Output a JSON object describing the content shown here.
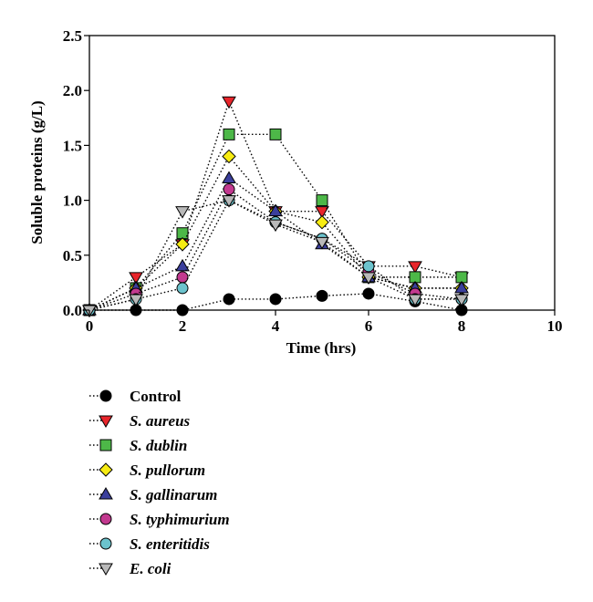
{
  "chart_data": {
    "type": "line",
    "title": "",
    "xlabel": "Time (hrs)",
    "ylabel": "Soluble proteins (g/L)",
    "xlim": [
      0,
      10
    ],
    "ylim": [
      0,
      2.5
    ],
    "xticks": [
      "0",
      "2",
      "4",
      "6",
      "8",
      "10"
    ],
    "yticks": [
      "0.0",
      "0.5",
      "1.0",
      "1.5",
      "2.0",
      "2.5"
    ],
    "grid": false,
    "legend_position": "below",
    "line_style": "dotted",
    "x": [
      0,
      1,
      2,
      3,
      4,
      5,
      6,
      7,
      8
    ],
    "series": [
      {
        "name": "Control",
        "italic": false,
        "marker": "circle",
        "color": "#000000",
        "values": [
          0,
          0,
          0,
          0.1,
          0.1,
          0.13,
          0.15,
          0.08,
          0
        ]
      },
      {
        "name": "S. aureus",
        "italic": true,
        "marker": "triangle-down",
        "color": "#e8252b",
        "values": [
          0,
          0.3,
          0.6,
          1.9,
          0.9,
          0.9,
          0.4,
          0.4,
          0.3
        ]
      },
      {
        "name": "S. dublin",
        "italic": true,
        "marker": "square",
        "color": "#4db848",
        "values": [
          0,
          0.2,
          0.7,
          1.6,
          1.6,
          1.0,
          0.3,
          0.3,
          0.3
        ]
      },
      {
        "name": "S. pullorum",
        "italic": true,
        "marker": "diamond",
        "color": "#f7ec13",
        "values": [
          0,
          0.2,
          0.6,
          1.4,
          0.9,
          0.8,
          0.3,
          0.2,
          0.2
        ]
      },
      {
        "name": "S. gallinarum",
        "italic": true,
        "marker": "triangle-up",
        "color": "#3b3f9c",
        "values": [
          0,
          0.2,
          0.4,
          1.2,
          0.9,
          0.6,
          0.3,
          0.2,
          0.2
        ]
      },
      {
        "name": "S. typhimurium",
        "italic": true,
        "marker": "circle",
        "color": "#c2398f",
        "values": [
          0,
          0.15,
          0.3,
          1.1,
          0.8,
          0.65,
          0.35,
          0.15,
          0.1
        ]
      },
      {
        "name": "S. enteritidis",
        "italic": true,
        "marker": "circle",
        "color": "#6cc3cd",
        "values": [
          0,
          0.1,
          0.2,
          1.0,
          0.8,
          0.65,
          0.4,
          0.1,
          0.1
        ]
      },
      {
        "name": "E. coli",
        "italic": true,
        "marker": "triangle-down",
        "color": "#b9b9b9",
        "values": [
          0,
          0.1,
          0.9,
          1.0,
          0.78,
          0.62,
          0.3,
          0.1,
          0.1
        ]
      }
    ]
  }
}
